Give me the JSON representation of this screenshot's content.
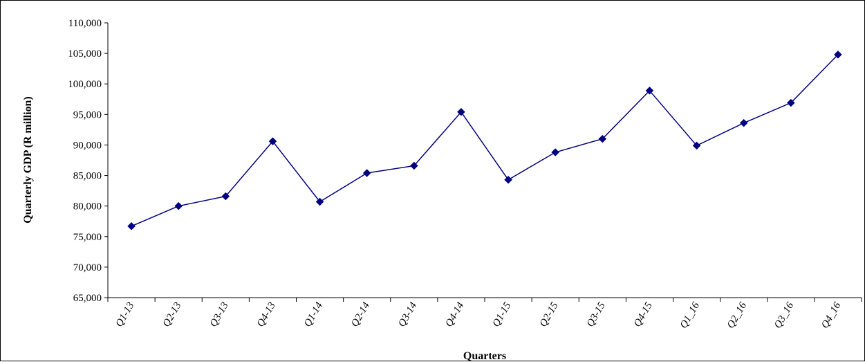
{
  "chart_data": {
    "type": "line",
    "title": "",
    "xlabel": "Quarters",
    "ylabel": "Quarterly GDP (R million)",
    "ylim": [
      65000,
      110000
    ],
    "ytick_step": 5000,
    "ytick_labels": [
      "65,000",
      "70,000",
      "75,000",
      "80,000",
      "85,000",
      "90,000",
      "95,000",
      "100,000",
      "105,000",
      "110,000"
    ],
    "categories": [
      "Q1-13",
      "Q2-13",
      "Q3-13",
      "Q4-13",
      "Q1-14",
      "Q2-14",
      "Q3-14",
      "Q4-14",
      "Q1-15",
      "Q2-15",
      "Q3-15",
      "Q4-15",
      "Q1_16",
      "Q2_16",
      "Q3_16",
      "Q4_16"
    ],
    "series": [
      {
        "values": [
          76700,
          80000,
          81600,
          90600,
          80700,
          85400,
          86600,
          95400,
          84300,
          88800,
          91000,
          98900,
          89900,
          93600,
          96900,
          104800
        ],
        "color": "#000080",
        "marker": "diamond"
      }
    ],
    "grid": false,
    "legend": "none"
  }
}
